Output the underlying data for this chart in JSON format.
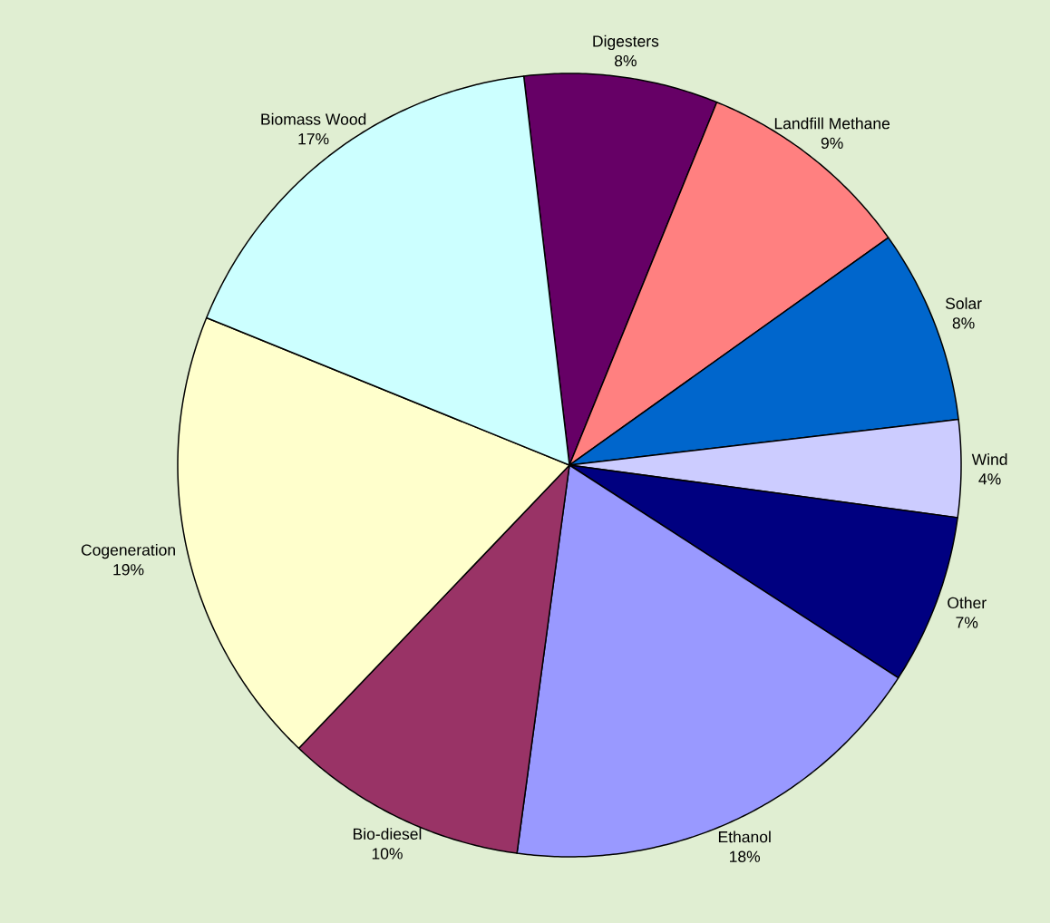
{
  "chart_data": {
    "type": "pie",
    "categories": [
      "Digesters",
      "Landfill Methane",
      "Solar",
      "Wind",
      "Other",
      "Ethanol",
      "Bio-diesel",
      "Cogeneration",
      "Biomass Wood"
    ],
    "values": [
      8,
      9,
      8,
      4,
      7,
      18,
      10,
      19,
      17
    ],
    "value_labels": [
      "8%",
      "9%",
      "8%",
      "4%",
      "7%",
      "18%",
      "10%",
      "19%",
      "17%"
    ],
    "colors": [
      "#660066",
      "#ff8080",
      "#0066cc",
      "#ccccff",
      "#000080",
      "#9999ff",
      "#993366",
      "#ffffcc",
      "#ccffff"
    ]
  }
}
